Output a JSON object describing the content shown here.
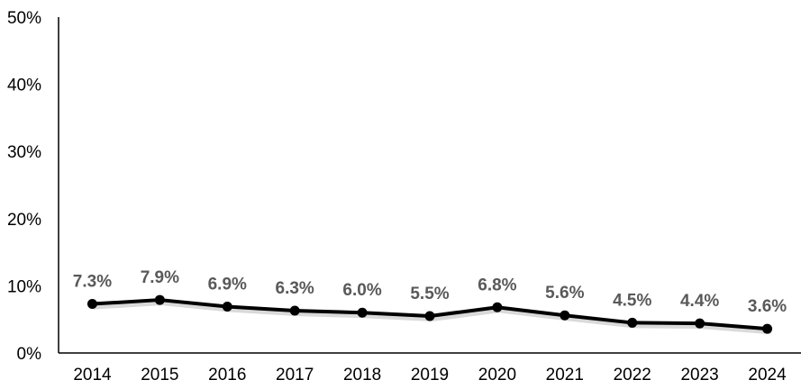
{
  "chart_data": {
    "type": "line",
    "categories": [
      "2014",
      "2015",
      "2016",
      "2017",
      "2018",
      "2019",
      "2020",
      "2021",
      "2022",
      "2023",
      "2024"
    ],
    "series": [
      {
        "values": [
          7.3,
          7.9,
          6.9,
          6.3,
          6.0,
          5.5,
          6.8,
          5.6,
          4.5,
          4.4,
          3.6
        ],
        "labels": [
          "7.3%",
          "7.9%",
          "6.9%",
          "6.3%",
          "6.0%",
          "5.5%",
          "6.8%",
          "5.6%",
          "4.5%",
          "4.4%",
          "3.6%"
        ],
        "color": "#000000"
      }
    ],
    "ylim": [
      0,
      50
    ],
    "yticks": [
      0,
      10,
      20,
      30,
      40,
      50
    ],
    "ytick_labels": [
      "0%",
      "10%",
      "20%",
      "30%",
      "40%",
      "50%"
    ],
    "title": "",
    "xlabel": "",
    "ylabel": "",
    "grid": false,
    "legend": "none",
    "colors": {
      "line": "#000000",
      "shadow": "#d9d9d9",
      "data_label": "#595959",
      "axis": "#000000"
    }
  }
}
